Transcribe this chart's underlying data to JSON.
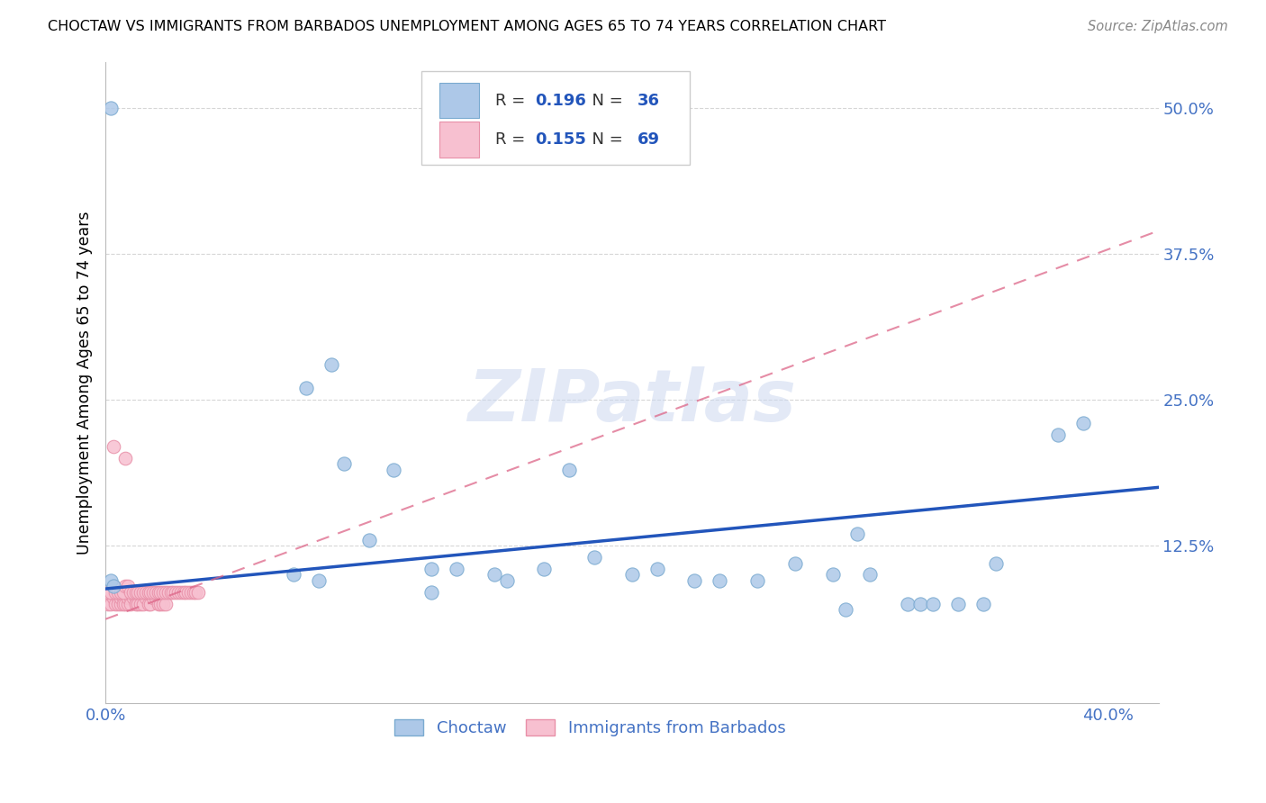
{
  "title": "CHOCTAW VS IMMIGRANTS FROM BARBADOS UNEMPLOYMENT AMONG AGES 65 TO 74 YEARS CORRELATION CHART",
  "source": "Source: ZipAtlas.com",
  "ylabel_label": "Unemployment Among Ages 65 to 74 years",
  "xlim": [
    0.0,
    0.42
  ],
  "ylim": [
    -0.01,
    0.54
  ],
  "xticks": [
    0.0,
    0.4
  ],
  "xticklabels": [
    "0.0%",
    "40.0%"
  ],
  "yticks": [
    0.125,
    0.25,
    0.375,
    0.5
  ],
  "yticklabels": [
    "12.5%",
    "25.0%",
    "37.5%",
    "50.0%"
  ],
  "yhlines": [
    0.125,
    0.25,
    0.375,
    0.5
  ],
  "tick_color": "#4472c4",
  "choctaw_color": "#adc8e8",
  "choctaw_edge": "#7aaad0",
  "barbados_color": "#f7c0d0",
  "barbados_edge": "#e890a8",
  "choctaw_R": 0.196,
  "choctaw_N": 36,
  "barbados_R": 0.155,
  "barbados_N": 69,
  "choctaw_line_color": "#2255bb",
  "barbados_line_color": "#dd6688",
  "watermark_text": "ZIPatlas",
  "choctaw_line_x0": 0.0,
  "choctaw_line_x1": 0.42,
  "choctaw_line_y0": 0.088,
  "choctaw_line_y1": 0.175,
  "barbados_line_x0": 0.0,
  "barbados_line_x1": 0.42,
  "barbados_line_y0": 0.062,
  "barbados_line_y1": 0.395,
  "choctaw_points_x": [
    0.002,
    0.002,
    0.003,
    0.08,
    0.09,
    0.095,
    0.115,
    0.13,
    0.175,
    0.185,
    0.195,
    0.21,
    0.235,
    0.275,
    0.29,
    0.305,
    0.32,
    0.325,
    0.355,
    0.38,
    0.13,
    0.14,
    0.155,
    0.22,
    0.245,
    0.26,
    0.34,
    0.35,
    0.105,
    0.16,
    0.075,
    0.085,
    0.295,
    0.3,
    0.33,
    0.39
  ],
  "choctaw_points_y": [
    0.5,
    0.095,
    0.09,
    0.26,
    0.28,
    0.195,
    0.19,
    0.105,
    0.105,
    0.19,
    0.115,
    0.1,
    0.095,
    0.11,
    0.1,
    0.1,
    0.075,
    0.075,
    0.11,
    0.22,
    0.085,
    0.105,
    0.1,
    0.105,
    0.095,
    0.095,
    0.075,
    0.075,
    0.13,
    0.095,
    0.1,
    0.095,
    0.07,
    0.135,
    0.075,
    0.23
  ],
  "barbados_points_x": [
    0.001,
    0.002,
    0.003,
    0.004,
    0.005,
    0.005,
    0.006,
    0.006,
    0.007,
    0.007,
    0.008,
    0.009,
    0.009,
    0.01,
    0.01,
    0.011,
    0.012,
    0.012,
    0.013,
    0.014,
    0.015,
    0.016,
    0.017,
    0.018,
    0.019,
    0.02,
    0.021,
    0.022,
    0.023,
    0.024,
    0.001,
    0.002,
    0.003,
    0.004,
    0.005,
    0.006,
    0.007,
    0.008,
    0.009,
    0.01,
    0.011,
    0.012,
    0.013,
    0.014,
    0.015,
    0.016,
    0.017,
    0.018,
    0.019,
    0.02,
    0.021,
    0.022,
    0.023,
    0.024,
    0.025,
    0.026,
    0.027,
    0.028,
    0.029,
    0.03,
    0.031,
    0.032,
    0.033,
    0.034,
    0.035,
    0.036,
    0.037,
    0.003,
    0.008
  ],
  "barbados_points_y": [
    0.075,
    0.075,
    0.08,
    0.075,
    0.08,
    0.075,
    0.075,
    0.08,
    0.08,
    0.075,
    0.075,
    0.075,
    0.08,
    0.08,
    0.075,
    0.08,
    0.08,
    0.075,
    0.075,
    0.075,
    0.075,
    0.08,
    0.075,
    0.075,
    0.08,
    0.08,
    0.075,
    0.075,
    0.075,
    0.075,
    0.085,
    0.085,
    0.09,
    0.085,
    0.085,
    0.085,
    0.085,
    0.09,
    0.09,
    0.085,
    0.085,
    0.085,
    0.085,
    0.085,
    0.085,
    0.085,
    0.085,
    0.085,
    0.085,
    0.085,
    0.085,
    0.085,
    0.085,
    0.085,
    0.085,
    0.085,
    0.085,
    0.085,
    0.085,
    0.085,
    0.085,
    0.085,
    0.085,
    0.085,
    0.085,
    0.085,
    0.085,
    0.21,
    0.2
  ]
}
